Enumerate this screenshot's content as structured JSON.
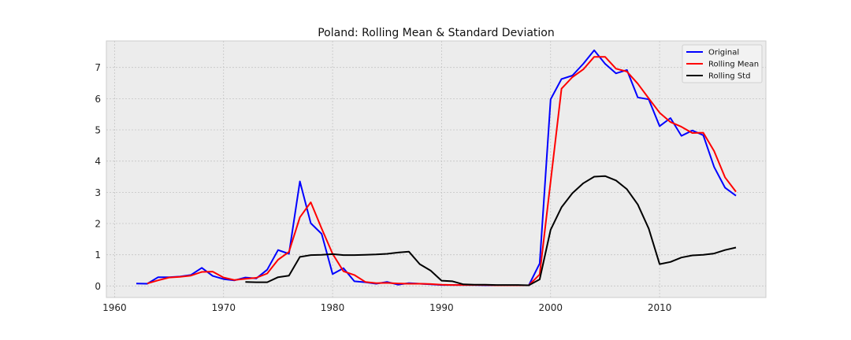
{
  "chart_data": {
    "type": "line",
    "title": "Poland: Rolling Mean & Standard Deviation",
    "xlabel": "",
    "ylabel": "",
    "xlim": [
      1959.25,
      2019.75
    ],
    "ylim": [
      -0.37,
      7.85
    ],
    "xticks": [
      1960,
      1970,
      1980,
      1990,
      2000,
      2010
    ],
    "yticks": [
      0,
      1,
      2,
      3,
      4,
      5,
      6,
      7
    ],
    "grid": true,
    "legend_position": "top-right",
    "series": [
      {
        "name": "Original",
        "color": "#0000ff",
        "points": [
          [
            1962,
            0.08
          ],
          [
            1963,
            0.07
          ],
          [
            1964,
            0.28
          ],
          [
            1965,
            0.28
          ],
          [
            1966,
            0.3
          ],
          [
            1967,
            0.35
          ],
          [
            1968,
            0.58
          ],
          [
            1969,
            0.32
          ],
          [
            1970,
            0.22
          ],
          [
            1971,
            0.18
          ],
          [
            1972,
            0.27
          ],
          [
            1973,
            0.24
          ],
          [
            1974,
            0.52
          ],
          [
            1975,
            1.15
          ],
          [
            1976,
            1.03
          ],
          [
            1977,
            3.35
          ],
          [
            1978,
            2.01
          ],
          [
            1979,
            1.67
          ],
          [
            1980,
            0.38
          ],
          [
            1981,
            0.57
          ],
          [
            1982,
            0.15
          ],
          [
            1983,
            0.12
          ],
          [
            1984,
            0.07
          ],
          [
            1985,
            0.13
          ],
          [
            1986,
            0.04
          ],
          [
            1987,
            0.09
          ],
          [
            1988,
            0.07
          ],
          [
            1989,
            0.05
          ],
          [
            1990,
            0.03
          ],
          [
            1991,
            0.03
          ],
          [
            1992,
            0.03
          ],
          [
            1993,
            0.03
          ],
          [
            1994,
            0.02
          ],
          [
            1995,
            0.02
          ],
          [
            1996,
            0.02
          ],
          [
            1997,
            0.02
          ],
          [
            1998,
            0.02
          ],
          [
            1999,
            0.72
          ],
          [
            2000,
            5.98
          ],
          [
            2001,
            6.63
          ],
          [
            2002,
            6.74
          ],
          [
            2003,
            7.12
          ],
          [
            2004,
            7.55
          ],
          [
            2005,
            7.12
          ],
          [
            2006,
            6.81
          ],
          [
            2007,
            6.92
          ],
          [
            2008,
            6.04
          ],
          [
            2009,
            5.98
          ],
          [
            2010,
            5.12
          ],
          [
            2011,
            5.38
          ],
          [
            2012,
            4.81
          ],
          [
            2013,
            4.98
          ],
          [
            2014,
            4.83
          ],
          [
            2015,
            3.81
          ],
          [
            2016,
            3.15
          ],
          [
            2017,
            2.89
          ]
        ]
      },
      {
        "name": "Rolling Mean",
        "color": "#ff0000",
        "points": [
          [
            1963,
            0.08
          ],
          [
            1964,
            0.18
          ],
          [
            1965,
            0.27
          ],
          [
            1966,
            0.29
          ],
          [
            1967,
            0.33
          ],
          [
            1968,
            0.45
          ],
          [
            1969,
            0.46
          ],
          [
            1970,
            0.27
          ],
          [
            1971,
            0.19
          ],
          [
            1972,
            0.23
          ],
          [
            1973,
            0.26
          ],
          [
            1974,
            0.4
          ],
          [
            1975,
            0.84
          ],
          [
            1976,
            1.09
          ],
          [
            1977,
            2.2
          ],
          [
            1978,
            2.68
          ],
          [
            1979,
            1.84
          ],
          [
            1980,
            1.03
          ],
          [
            1981,
            0.47
          ],
          [
            1982,
            0.35
          ],
          [
            1983,
            0.13
          ],
          [
            1984,
            0.09
          ],
          [
            1985,
            0.1
          ],
          [
            1986,
            0.08
          ],
          [
            1987,
            0.07
          ],
          [
            1988,
            0.07
          ],
          [
            1989,
            0.06
          ],
          [
            1990,
            0.04
          ],
          [
            1991,
            0.03
          ],
          [
            1992,
            0.03
          ],
          [
            1993,
            0.03
          ],
          [
            1994,
            0.03
          ],
          [
            1995,
            0.02
          ],
          [
            1996,
            0.02
          ],
          [
            1997,
            0.02
          ],
          [
            1998,
            0.02
          ],
          [
            1999,
            0.37
          ],
          [
            2000,
            3.35
          ],
          [
            2001,
            6.32
          ],
          [
            2002,
            6.69
          ],
          [
            2003,
            6.94
          ],
          [
            2004,
            7.34
          ],
          [
            2005,
            7.34
          ],
          [
            2006,
            6.96
          ],
          [
            2007,
            6.87
          ],
          [
            2008,
            6.48
          ],
          [
            2009,
            6.01
          ],
          [
            2010,
            5.55
          ],
          [
            2011,
            5.25
          ],
          [
            2012,
            5.1
          ],
          [
            2013,
            4.9
          ],
          [
            2014,
            4.91
          ],
          [
            2015,
            4.32
          ],
          [
            2016,
            3.48
          ],
          [
            2017,
            3.02
          ]
        ]
      },
      {
        "name": "Rolling Std",
        "color": "#000000",
        "points": [
          [
            1972,
            0.13
          ],
          [
            1973,
            0.12
          ],
          [
            1974,
            0.12
          ],
          [
            1975,
            0.28
          ],
          [
            1976,
            0.33
          ],
          [
            1977,
            0.93
          ],
          [
            1978,
            0.99
          ],
          [
            1979,
            1.0
          ],
          [
            1980,
            1.02
          ],
          [
            1981,
            0.99
          ],
          [
            1982,
            0.99
          ],
          [
            1983,
            1.0
          ],
          [
            1984,
            1.01
          ],
          [
            1985,
            1.03
          ],
          [
            1986,
            1.07
          ],
          [
            1987,
            1.1
          ],
          [
            1988,
            0.7
          ],
          [
            1989,
            0.49
          ],
          [
            1990,
            0.17
          ],
          [
            1991,
            0.15
          ],
          [
            1992,
            0.05
          ],
          [
            1993,
            0.04
          ],
          [
            1994,
            0.04
          ],
          [
            1995,
            0.03
          ],
          [
            1996,
            0.03
          ],
          [
            1997,
            0.03
          ],
          [
            1998,
            0.02
          ],
          [
            1999,
            0.21
          ],
          [
            2000,
            1.8
          ],
          [
            2001,
            2.52
          ],
          [
            2002,
            2.97
          ],
          [
            2003,
            3.29
          ],
          [
            2004,
            3.5
          ],
          [
            2005,
            3.52
          ],
          [
            2006,
            3.38
          ],
          [
            2007,
            3.1
          ],
          [
            2008,
            2.61
          ],
          [
            2009,
            1.84
          ],
          [
            2010,
            0.7
          ],
          [
            2011,
            0.77
          ],
          [
            2012,
            0.91
          ],
          [
            2013,
            0.98
          ],
          [
            2014,
            1.0
          ],
          [
            2015,
            1.04
          ],
          [
            2016,
            1.15
          ],
          [
            2017,
            1.23
          ]
        ]
      }
    ]
  }
}
